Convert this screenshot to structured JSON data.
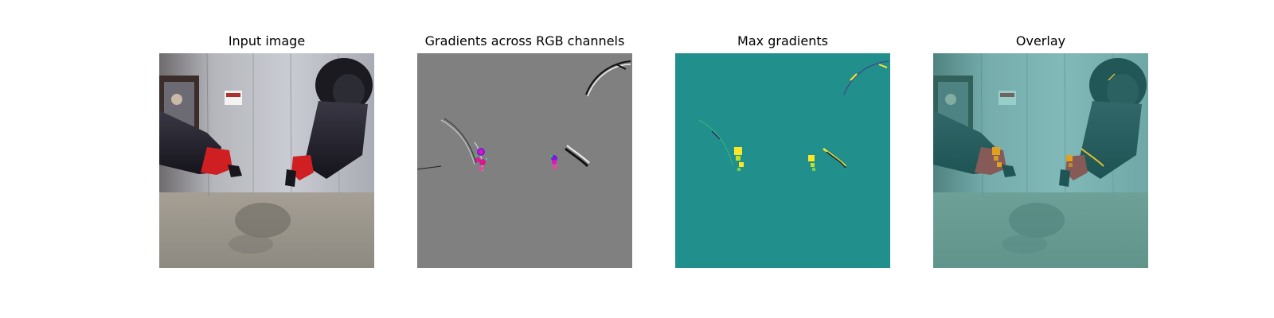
{
  "figure": {
    "panels": [
      {
        "title": "Input image"
      },
      {
        "title": "Gradients across RGB channels"
      },
      {
        "title": "Max gradients"
      },
      {
        "title": "Overlay"
      }
    ]
  },
  "colors": {
    "rgb_gradient_background": "#808080",
    "max_gradient_background": "#21908d",
    "max_gradient_peak": "#fde725",
    "overlay_tint": "#2aa198"
  }
}
